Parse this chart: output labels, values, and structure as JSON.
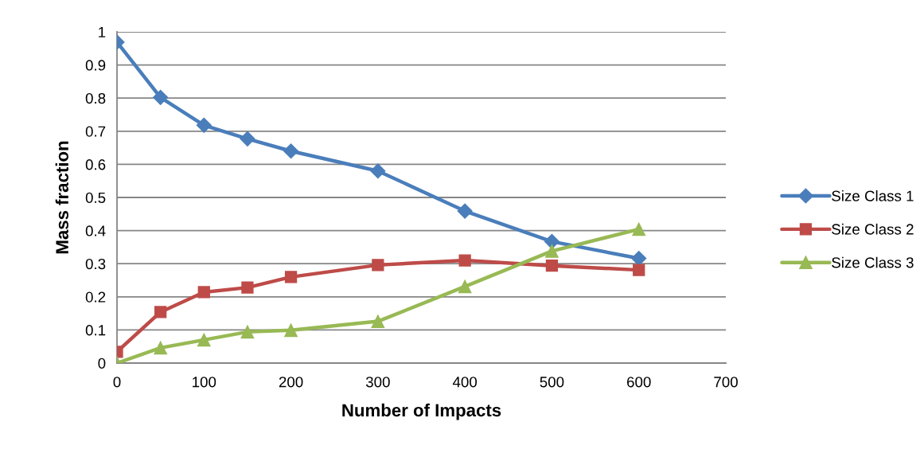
{
  "chart_data": {
    "type": "line",
    "xlabel": "Number of Impacts",
    "ylabel": "Mass fraction",
    "x": [
      0,
      50,
      100,
      150,
      200,
      300,
      400,
      500,
      600
    ],
    "series": [
      {
        "name": "Size Class 1",
        "color": "#4a7ebb",
        "marker": "diamond",
        "values": [
          0.969,
          0.802,
          0.718,
          0.677,
          0.64,
          0.58,
          0.459,
          0.367,
          0.316
        ]
      },
      {
        "name": "Size Class 2",
        "color": "#be4b48",
        "marker": "square",
        "values": [
          0.034,
          0.154,
          0.214,
          0.228,
          0.26,
          0.296,
          0.31,
          0.294,
          0.281
        ]
      },
      {
        "name": "Size Class 3",
        "color": "#98b954",
        "marker": "triangle",
        "values": [
          0.0,
          0.046,
          0.07,
          0.094,
          0.099,
          0.126,
          0.231,
          0.338,
          0.404
        ]
      }
    ],
    "xlim": [
      0,
      700
    ],
    "xticks": [
      0,
      100,
      200,
      300,
      400,
      500,
      600,
      700
    ],
    "ylim": [
      0,
      1
    ],
    "yticks": [
      0,
      {
        "value": 0.1,
        "label": "0.1"
      },
      {
        "value": 0.2,
        "label": "0.2"
      },
      {
        "value": 0.3,
        "label": "0.3"
      },
      {
        "value": 0.4,
        "label": "0.4"
      },
      {
        "value": 0.5,
        "label": "0.5"
      },
      {
        "value": 0.6,
        "label": "0.6"
      },
      {
        "value": 0.7,
        "label": "0.7"
      },
      {
        "value": 0.8,
        "label": "0.8"
      },
      {
        "value": 0.9,
        "label": "0.9"
      },
      1
    ],
    "grid": "y",
    "legend": "right",
    "line_style": "solid"
  }
}
